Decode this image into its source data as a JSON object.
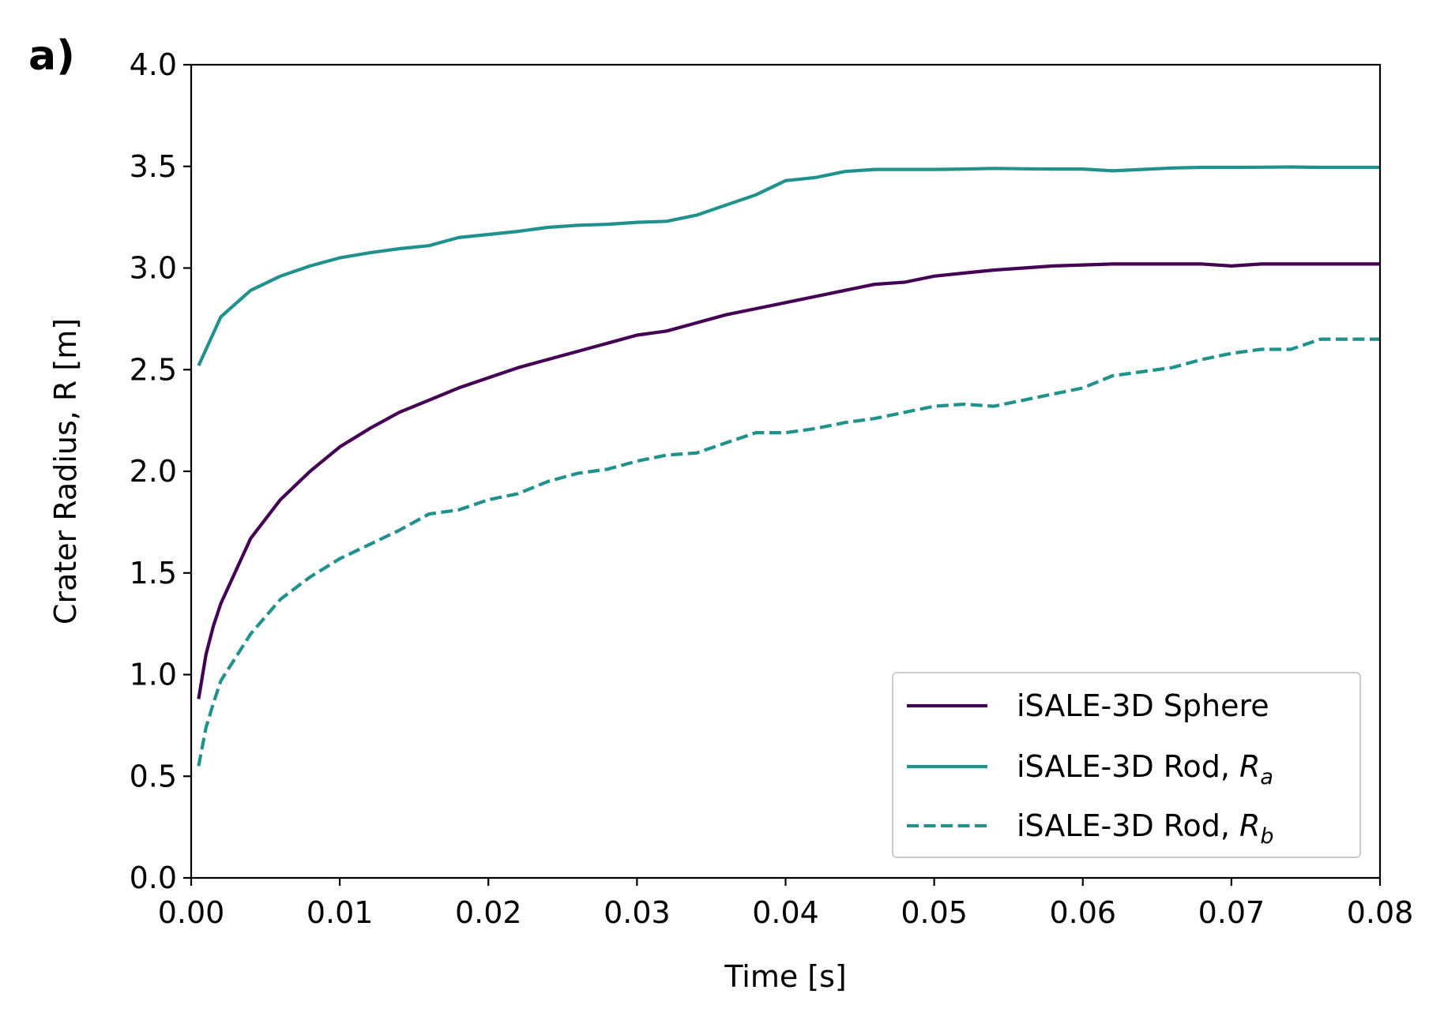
{
  "chart_data": {
    "type": "line",
    "panel_label": "a)",
    "title": "",
    "xlabel": "Time [s]",
    "ylabel": "Crater Radius, R [m]",
    "xlim": [
      0.0,
      0.08
    ],
    "ylim": [
      0.0,
      4.0
    ],
    "xticks": [
      "0.00",
      "0.01",
      "0.02",
      "0.03",
      "0.04",
      "0.05",
      "0.06",
      "0.07",
      "0.08"
    ],
    "yticks": [
      "0.0",
      "0.5",
      "1.0",
      "1.5",
      "2.0",
      "2.5",
      "3.0",
      "3.5",
      "4.0"
    ],
    "grid": false,
    "legend_position": "lower-right",
    "series": [
      {
        "name": "iSALE-3D Sphere",
        "legend_main": "iSALE-3D Sphere",
        "legend_sub": "",
        "color": "#440154",
        "dash": "solid",
        "x": [
          0.0005,
          0.001,
          0.0015,
          0.002,
          0.003,
          0.004,
          0.006,
          0.008,
          0.01,
          0.012,
          0.014,
          0.016,
          0.018,
          0.02,
          0.022,
          0.024,
          0.026,
          0.028,
          0.03,
          0.032,
          0.034,
          0.036,
          0.038,
          0.04,
          0.042,
          0.044,
          0.046,
          0.048,
          0.05,
          0.052,
          0.054,
          0.056,
          0.058,
          0.06,
          0.062,
          0.064,
          0.066,
          0.068,
          0.07,
          0.072,
          0.074,
          0.076,
          0.078,
          0.08
        ],
        "y": [
          0.88,
          1.1,
          1.24,
          1.35,
          1.51,
          1.67,
          1.86,
          2.0,
          2.12,
          2.21,
          2.29,
          2.35,
          2.41,
          2.46,
          2.51,
          2.55,
          2.59,
          2.63,
          2.67,
          2.69,
          2.73,
          2.77,
          2.8,
          2.83,
          2.86,
          2.89,
          2.92,
          2.93,
          2.96,
          2.975,
          2.99,
          3.0,
          3.01,
          3.015,
          3.02,
          3.02,
          3.02,
          3.02,
          3.01,
          3.02,
          3.02,
          3.02,
          3.02,
          3.02
        ]
      },
      {
        "name": "iSALE-3D Rod, Ra",
        "legend_main": "iSALE-3D Rod, R",
        "legend_sub": "a",
        "color": "#21918c",
        "dash": "solid",
        "x": [
          0.0005,
          0.001,
          0.0015,
          0.002,
          0.004,
          0.006,
          0.008,
          0.01,
          0.012,
          0.014,
          0.016,
          0.018,
          0.02,
          0.022,
          0.024,
          0.026,
          0.028,
          0.03,
          0.032,
          0.034,
          0.036,
          0.038,
          0.04,
          0.042,
          0.044,
          0.046,
          0.048,
          0.05,
          0.052,
          0.054,
          0.056,
          0.058,
          0.06,
          0.062,
          0.064,
          0.066,
          0.068,
          0.07,
          0.072,
          0.074,
          0.076,
          0.078,
          0.08
        ],
        "y": [
          2.52,
          2.6,
          2.68,
          2.76,
          2.89,
          2.96,
          3.01,
          3.05,
          3.075,
          3.095,
          3.11,
          3.15,
          3.165,
          3.18,
          3.2,
          3.21,
          3.215,
          3.225,
          3.23,
          3.26,
          3.31,
          3.36,
          3.43,
          3.445,
          3.475,
          3.485,
          3.485,
          3.485,
          3.487,
          3.49,
          3.488,
          3.487,
          3.487,
          3.478,
          3.485,
          3.492,
          3.495,
          3.495,
          3.496,
          3.497,
          3.495,
          3.495,
          3.495
        ]
      },
      {
        "name": "iSALE-3D Rod, Rb",
        "legend_main": "iSALE-3D Rod, R",
        "legend_sub": "b",
        "color": "#21918c",
        "dash": "dashed",
        "x": [
          0.0005,
          0.001,
          0.0015,
          0.002,
          0.004,
          0.006,
          0.008,
          0.01,
          0.012,
          0.014,
          0.016,
          0.018,
          0.02,
          0.022,
          0.024,
          0.026,
          0.028,
          0.03,
          0.032,
          0.034,
          0.036,
          0.038,
          0.04,
          0.042,
          0.044,
          0.046,
          0.048,
          0.05,
          0.052,
          0.054,
          0.056,
          0.058,
          0.06,
          0.062,
          0.064,
          0.066,
          0.068,
          0.07,
          0.072,
          0.074,
          0.076,
          0.078,
          0.08
        ],
        "y": [
          0.55,
          0.74,
          0.86,
          0.97,
          1.2,
          1.37,
          1.48,
          1.57,
          1.64,
          1.71,
          1.79,
          1.81,
          1.86,
          1.89,
          1.95,
          1.99,
          2.01,
          2.05,
          2.08,
          2.09,
          2.14,
          2.19,
          2.19,
          2.21,
          2.24,
          2.26,
          2.29,
          2.32,
          2.33,
          2.32,
          2.35,
          2.38,
          2.41,
          2.47,
          2.49,
          2.51,
          2.55,
          2.58,
          2.6,
          2.6,
          2.65,
          2.65,
          2.65
        ]
      }
    ]
  }
}
